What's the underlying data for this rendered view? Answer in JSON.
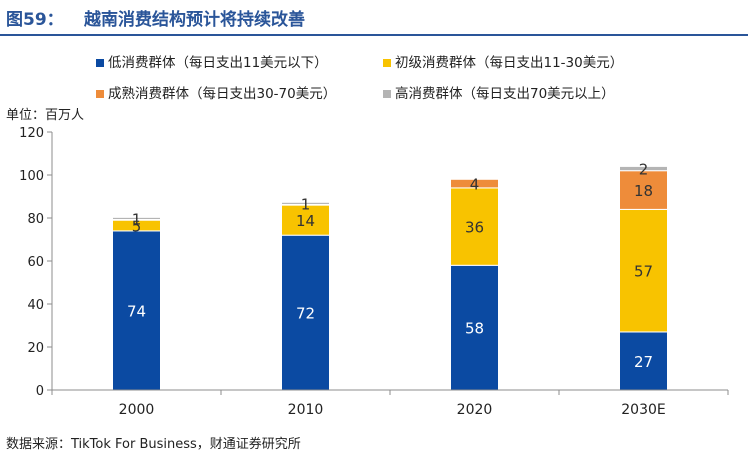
{
  "header": {
    "figure_number": "图59：",
    "title": "越南消费结构预计将持续改善"
  },
  "footer": {
    "source": "数据来源：TikTok For Business，财通证券研究所"
  },
  "chart_data": {
    "type": "bar",
    "stacked": true,
    "title": "越南消费结构预计将持续改善",
    "ylabel": "单位：百万人",
    "xlabel": "",
    "ylim": [
      0,
      120
    ],
    "yticks": [
      0,
      20,
      40,
      60,
      80,
      100,
      120
    ],
    "categories": [
      "2000",
      "2010",
      "2020",
      "2030E"
    ],
    "legend_position": "top",
    "series": [
      {
        "name": "低消费群体（每日支出11美元以下）",
        "color": "#0b4aa2",
        "values": [
          74,
          72,
          58,
          27
        ],
        "labels": [
          "74",
          "72",
          "58",
          "27"
        ],
        "label_color": "#ffffff"
      },
      {
        "name": "初级消费群体（每日支出11-30美元）",
        "color": "#f8c300",
        "values": [
          5,
          14,
          36,
          57
        ],
        "labels": [
          "5",
          "14",
          "36",
          "57"
        ],
        "label_color": "#333333"
      },
      {
        "name": "成熟消费群体（每日支出30-70美元）",
        "color": "#ee8c3a",
        "values": [
          0.3,
          0.3,
          4,
          18
        ],
        "labels": [
          "",
          "",
          "4",
          "18"
        ],
        "label_color": "#333333"
      },
      {
        "name": "高消费群体（每日支出70美元以上）",
        "color": "#b4b4b4",
        "values": [
          1,
          1,
          0,
          2
        ],
        "labels": [
          "1",
          "1",
          "",
          "2"
        ],
        "label_color": "#333333"
      }
    ]
  }
}
